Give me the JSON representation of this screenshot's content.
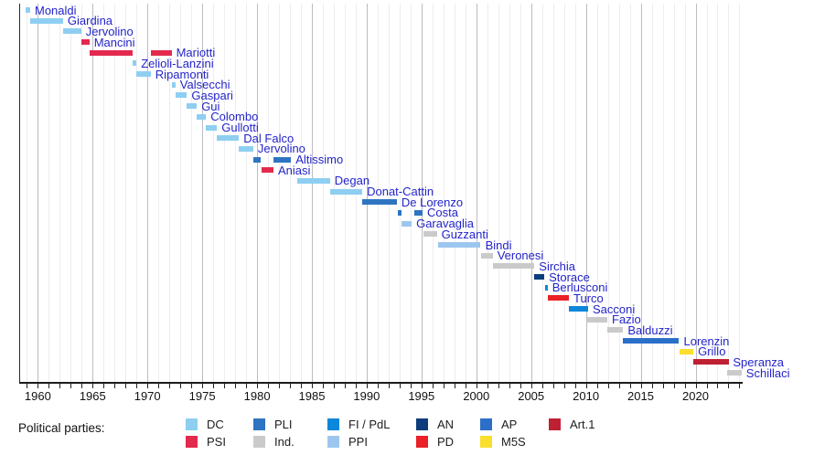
{
  "chart_data": {
    "type": "timeline",
    "x_axis": {
      "start": 1958.3,
      "end": 2024.3,
      "minor_tick_interval": 1,
      "major_grid_interval": 5,
      "labeled_ticks": [
        1960,
        1965,
        1970,
        1975,
        1980,
        1985,
        1990,
        1995,
        2000,
        2005,
        2010,
        2015,
        2020
      ]
    },
    "label_color": "#2424C9",
    "party_colors": {
      "DC": "#8ECFF1",
      "PSI": "#E32A4E",
      "PLI": "#2F74C0",
      "Ind.": "#CACACA",
      "FI / PdL": "#0B87DB",
      "PPI": "#9DC6EF",
      "AN": "#0D3D7C",
      "PD": "#EA2127",
      "AP": "#2B6FC9",
      "M5S": "#FBDF2E",
      "Art.1": "#BF2034"
    },
    "ministers": [
      {
        "name": "Monaldi",
        "party": "DC",
        "terms": [
          [
            1958.85,
            1959.3
          ]
        ]
      },
      {
        "name": "Giardina",
        "party": "DC",
        "terms": [
          [
            1959.3,
            1962.3
          ]
        ]
      },
      {
        "name": "Jervolino",
        "party": "DC",
        "terms": [
          [
            1962.3,
            1963.95
          ]
        ]
      },
      {
        "name": "Mancini",
        "party": "PSI",
        "terms": [
          [
            1963.95,
            1964.7
          ]
        ]
      },
      {
        "name": "Mariotti",
        "party": "PSI",
        "terms": [
          [
            1964.7,
            1968.65
          ],
          [
            1970.3,
            1972.2
          ]
        ]
      },
      {
        "name": "Zelioli-Lanzini",
        "party": "DC",
        "terms": [
          [
            1968.65,
            1969.0
          ]
        ]
      },
      {
        "name": "Ripamonti",
        "party": "DC",
        "terms": [
          [
            1969.0,
            1970.3
          ]
        ]
      },
      {
        "name": "Valsecchi",
        "party": "DC",
        "terms": [
          [
            1972.2,
            1972.55
          ]
        ]
      },
      {
        "name": "Gaspari",
        "party": "DC",
        "terms": [
          [
            1972.55,
            1973.6
          ]
        ]
      },
      {
        "name": "Gui",
        "party": "DC",
        "terms": [
          [
            1973.6,
            1974.5
          ]
        ]
      },
      {
        "name": "Colombo",
        "party": "DC",
        "terms": [
          [
            1974.5,
            1975.35
          ]
        ]
      },
      {
        "name": "Gullotti",
        "party": "DC",
        "terms": [
          [
            1975.35,
            1976.35
          ]
        ]
      },
      {
        "name": "Dal Falco",
        "party": "DC",
        "terms": [
          [
            1976.35,
            1978.35
          ]
        ]
      },
      {
        "name": "Jervolino",
        "party": "DC",
        "terms": [
          [
            1978.35,
            1979.65
          ]
        ]
      },
      {
        "name": "Altissimo",
        "party": "PLI",
        "terms": [
          [
            1979.65,
            1980.3
          ],
          [
            1981.5,
            1983.1
          ]
        ]
      },
      {
        "name": "Aniasi",
        "party": "PSI",
        "terms": [
          [
            1980.4,
            1981.5
          ]
        ]
      },
      {
        "name": "Degan",
        "party": "DC",
        "terms": [
          [
            1983.7,
            1986.65
          ]
        ]
      },
      {
        "name": "Donat-Cattin",
        "party": "DC",
        "terms": [
          [
            1986.65,
            1989.6
          ]
        ]
      },
      {
        "name": "De Lorenzo",
        "party": "PLI",
        "terms": [
          [
            1989.6,
            1992.75
          ]
        ]
      },
      {
        "name": "Costa",
        "party": "PLI",
        "terms": [
          [
            1992.8,
            1993.15
          ],
          [
            1994.3,
            1995.1
          ]
        ]
      },
      {
        "name": "Garavaglia",
        "party": "PPI",
        "terms": [
          [
            1993.15,
            1994.1
          ]
        ]
      },
      {
        "name": "Guzzanti",
        "party": "Ind.",
        "terms": [
          [
            1995.15,
            1996.4
          ]
        ]
      },
      {
        "name": "Bindi",
        "party": "PPI",
        "terms": [
          [
            1996.5,
            2000.4
          ]
        ]
      },
      {
        "name": "Veronesi",
        "party": "Ind.",
        "terms": [
          [
            2000.4,
            2001.5
          ]
        ]
      },
      {
        "name": "Sirchia",
        "party": "Ind.",
        "terms": [
          [
            2001.5,
            2005.3
          ]
        ]
      },
      {
        "name": "Storace",
        "party": "AN",
        "terms": [
          [
            2005.3,
            2006.2
          ]
        ]
      },
      {
        "name": "Berlusconi",
        "party": "FI / PdL",
        "terms": [
          [
            2006.25,
            2006.5
          ]
        ]
      },
      {
        "name": "Turco",
        "party": "PD",
        "terms": [
          [
            2006.5,
            2008.45
          ]
        ]
      },
      {
        "name": "Sacconi",
        "party": "FI / PdL",
        "terms": [
          [
            2008.45,
            2010.2
          ]
        ]
      },
      {
        "name": "Fazio",
        "party": "Ind.",
        "terms": [
          [
            2010.1,
            2011.95
          ]
        ]
      },
      {
        "name": "Balduzzi",
        "party": "Ind.",
        "terms": [
          [
            2011.95,
            2013.4
          ]
        ]
      },
      {
        "name": "Lorenzin",
        "party": "AP",
        "terms": [
          [
            2013.4,
            2018.5
          ]
        ]
      },
      {
        "name": "Grillo",
        "party": "M5S",
        "terms": [
          [
            2018.5,
            2019.8
          ]
        ]
      },
      {
        "name": "Speranza",
        "party": "Art.1",
        "terms": [
          [
            2019.75,
            2023.0
          ]
        ]
      },
      {
        "name": "Schillaci",
        "party": "Ind.",
        "terms": [
          [
            2022.9,
            2024.2
          ]
        ]
      }
    ],
    "legend": {
      "title": "Political parties:",
      "columns": [
        [
          "DC",
          "PSI"
        ],
        [
          "PLI",
          "Ind."
        ],
        [
          "FI / PdL",
          "PPI"
        ],
        [
          "AN",
          "PD"
        ],
        [
          "AP",
          "M5S"
        ],
        [
          "Art.1"
        ]
      ]
    }
  }
}
